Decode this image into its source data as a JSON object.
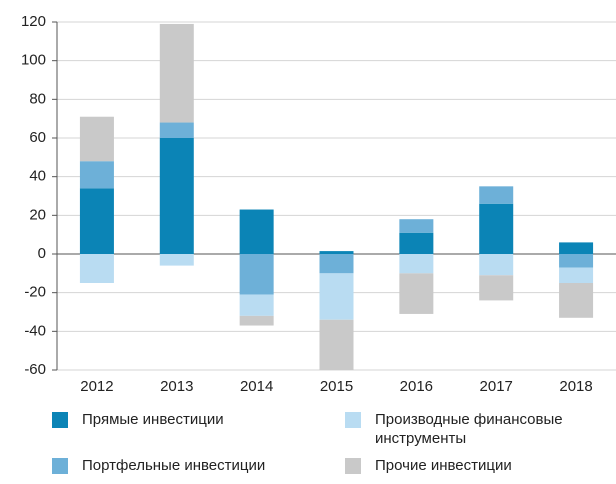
{
  "chart_data": {
    "type": "bar",
    "stacked": true,
    "categories": [
      "2012",
      "2013",
      "2014",
      "2015",
      "2016",
      "2017",
      "2018"
    ],
    "series": [
      {
        "name": "Прямые инвестиции",
        "color": "#0b84b6",
        "values": [
          34,
          60,
          23,
          1.5,
          11,
          26,
          6
        ]
      },
      {
        "name": "Портфельные инвестиции",
        "color": "#6db0d8",
        "values": [
          14,
          8,
          -21,
          -10,
          7,
          9,
          -7
        ]
      },
      {
        "name": "Производные финансовые инструменты",
        "color": "#b9dcf2",
        "values": [
          -15,
          -6,
          -11,
          -24,
          -10,
          -11,
          -8
        ]
      },
      {
        "name": "Прочие инвестиции",
        "color": "#c9c9c9",
        "values": [
          23,
          51,
          -5,
          -26,
          -21,
          -13,
          -18
        ]
      }
    ],
    "ylim": [
      -60,
      120
    ],
    "yticks": [
      -60,
      -40,
      -20,
      0,
      20,
      40,
      60,
      80,
      100,
      120
    ],
    "grid": true
  }
}
